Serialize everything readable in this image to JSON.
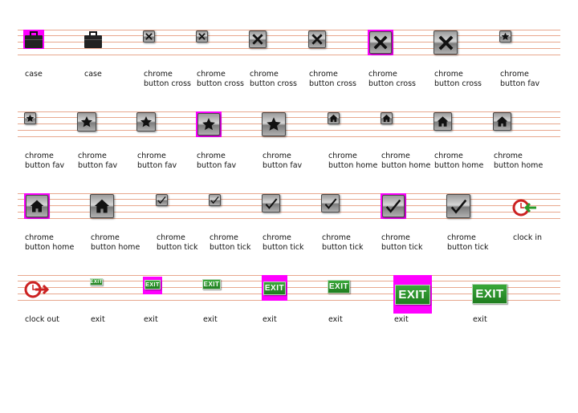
{
  "rows": [
    {
      "items": [
        {
          "label": "case",
          "icon": "briefcase-icon",
          "selected": true
        },
        {
          "label": "case",
          "icon": "briefcase-icon",
          "selected": false
        },
        {
          "label": "chrome button cross",
          "icon": "cross-icon",
          "selected": false
        },
        {
          "label": "chrome button cross",
          "icon": "cross-icon",
          "selected": false
        },
        {
          "label": "chrome button cross",
          "icon": "cross-icon",
          "selected": false
        },
        {
          "label": "chrome button cross",
          "icon": "cross-icon",
          "selected": false
        },
        {
          "label": "chrome button cross",
          "icon": "cross-icon",
          "selected": true
        },
        {
          "label": "chrome button cross",
          "icon": "cross-icon",
          "selected": false
        },
        {
          "label": "chrome button fav",
          "icon": "star-icon",
          "selected": false
        }
      ]
    },
    {
      "items": [
        {
          "label": "chrome button fav",
          "icon": "star-icon",
          "selected": false
        },
        {
          "label": "chrome button fav",
          "icon": "star-icon",
          "selected": false
        },
        {
          "label": "chrome button fav",
          "icon": "star-icon",
          "selected": false
        },
        {
          "label": "chrome button fav",
          "icon": "star-icon",
          "selected": true
        },
        {
          "label": "chrome button fav",
          "icon": "star-icon",
          "selected": false
        },
        {
          "label": "chrome button home",
          "icon": "home-icon",
          "selected": false
        },
        {
          "label": "chrome button home",
          "icon": "home-icon",
          "selected": false
        },
        {
          "label": "chrome button home",
          "icon": "home-icon",
          "selected": false
        },
        {
          "label": "chrome button home",
          "icon": "home-icon",
          "selected": false
        }
      ]
    },
    {
      "items": [
        {
          "label": "chrome button home",
          "icon": "home-icon",
          "selected": true
        },
        {
          "label": "chrome button home",
          "icon": "home-icon",
          "selected": false
        },
        {
          "label": "chrome button tick",
          "icon": "tick-icon",
          "selected": false
        },
        {
          "label": "chrome button tick",
          "icon": "tick-icon",
          "selected": false
        },
        {
          "label": "chrome button tick",
          "icon": "tick-icon",
          "selected": false
        },
        {
          "label": "chrome button tick",
          "icon": "tick-icon",
          "selected": false
        },
        {
          "label": "chrome button tick",
          "icon": "tick-icon",
          "selected": true
        },
        {
          "label": "chrome button tick",
          "icon": "tick-icon",
          "selected": false
        },
        {
          "label": "clock in",
          "icon": "clock-in-icon",
          "selected": false
        }
      ]
    },
    {
      "items": [
        {
          "label": "clock out",
          "icon": "clock-out-icon",
          "selected": false
        },
        {
          "label": "exit",
          "icon": "exit-icon",
          "selected": false,
          "text": "EXIT"
        },
        {
          "label": "exit",
          "icon": "exit-icon",
          "selected": true,
          "text": "EXIT"
        },
        {
          "label": "exit",
          "icon": "exit-icon",
          "selected": false,
          "text": "EXIT"
        },
        {
          "label": "exit",
          "icon": "exit-icon",
          "selected": true,
          "text": "EXIT"
        },
        {
          "label": "exit",
          "icon": "exit-icon",
          "selected": false,
          "text": "EXIT"
        },
        {
          "label": "exit",
          "icon": "exit-icon",
          "selected": true,
          "text": "EXIT"
        },
        {
          "label": "exit",
          "icon": "exit-icon",
          "selected": false,
          "text": "EXIT"
        }
      ]
    }
  ],
  "colors": {
    "selection": "#ff00ff",
    "guide_line": "#e8a88e",
    "exit_green": "#2a9a2a",
    "clock_red": "#cc2222",
    "clock_green": "#2a9a2a"
  }
}
